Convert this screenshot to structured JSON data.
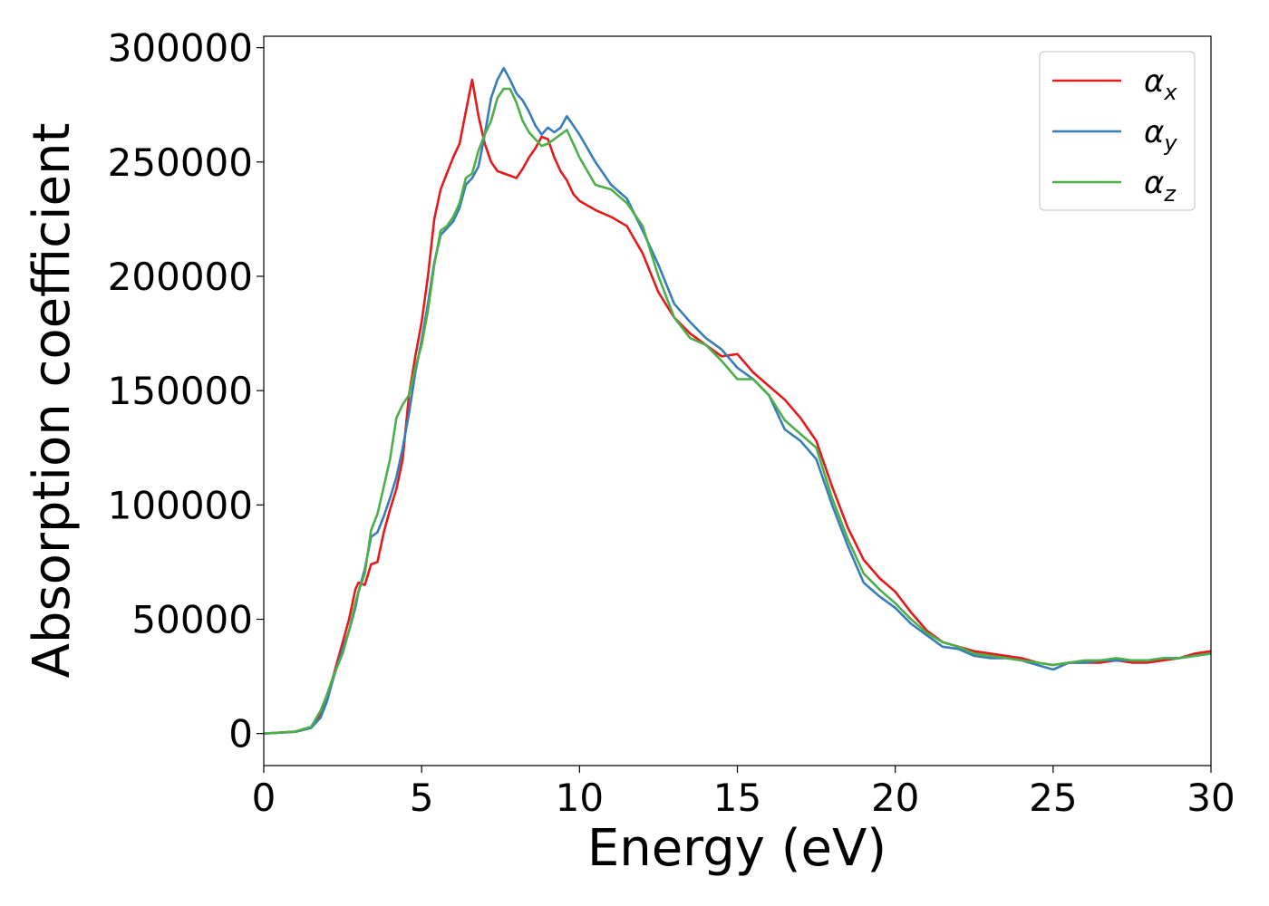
{
  "chart_data": {
    "type": "line",
    "title": "",
    "xlabel": "Energy (eV)",
    "ylabel": "Absorption coefficient",
    "xlim": [
      0,
      30
    ],
    "ylim": [
      -14000,
      305000
    ],
    "xticks": [
      0,
      5,
      10,
      15,
      20,
      25,
      30
    ],
    "yticks": [
      0,
      50000,
      100000,
      150000,
      200000,
      250000,
      300000
    ],
    "grid": false,
    "legend_placement": "top-right",
    "series": [
      {
        "name": "αx",
        "name_base": "α",
        "name_sub": "x",
        "color": "#e41a1c",
        "x": [
          0,
          1,
          1.5,
          1.8,
          2,
          2.2,
          2.5,
          2.7,
          2.9,
          3.0,
          3.2,
          3.4,
          3.6,
          3.8,
          4.0,
          4.2,
          4.4,
          4.6,
          4.8,
          5.0,
          5.2,
          5.4,
          5.6,
          5.8,
          6.0,
          6.2,
          6.4,
          6.6,
          6.8,
          7.0,
          7.2,
          7.4,
          7.6,
          7.8,
          8.0,
          8.2,
          8.4,
          8.6,
          8.8,
          9.0,
          9.2,
          9.4,
          9.6,
          9.8,
          10.0,
          10.5,
          11.0,
          11.5,
          12.0,
          12.5,
          13.0,
          13.5,
          14.0,
          14.5,
          15.0,
          15.5,
          16.0,
          16.5,
          17.0,
          17.5,
          18.0,
          18.5,
          19.0,
          19.5,
          20.0,
          20.5,
          21.0,
          21.5,
          22.0,
          22.5,
          23.0,
          23.5,
          24.0,
          24.5,
          25.0,
          25.5,
          26.0,
          26.5,
          27.0,
          27.5,
          28.0,
          28.5,
          29.0,
          29.5,
          30.0
        ],
        "y": [
          0,
          800,
          2500,
          8000,
          15000,
          25000,
          40000,
          50000,
          63000,
          66000,
          65000,
          74000,
          75000,
          88000,
          98000,
          107000,
          120000,
          148000,
          165000,
          180000,
          200000,
          225000,
          238000,
          245000,
          252000,
          258000,
          272000,
          286000,
          270000,
          258000,
          250000,
          246000,
          245000,
          244000,
          243000,
          247000,
          252000,
          256000,
          261000,
          260000,
          252000,
          246000,
          242000,
          236000,
          233000,
          229000,
          226000,
          222000,
          210000,
          193000,
          182000,
          175000,
          170000,
          165000,
          166000,
          158000,
          152000,
          146000,
          138000,
          128000,
          108000,
          90000,
          76000,
          68000,
          62000,
          53000,
          45000,
          40000,
          38000,
          36000,
          35000,
          34000,
          33000,
          31000,
          30000,
          31000,
          31000,
          31000,
          32000,
          31000,
          31000,
          32000,
          33000,
          35000,
          36000
        ]
      },
      {
        "name": "αy",
        "name_base": "α",
        "name_sub": "y",
        "color": "#377eb8",
        "x": [
          0,
          1,
          1.5,
          1.8,
          2,
          2.2,
          2.5,
          2.7,
          2.9,
          3.0,
          3.2,
          3.4,
          3.6,
          3.8,
          4.0,
          4.2,
          4.4,
          4.6,
          4.8,
          5.0,
          5.2,
          5.4,
          5.6,
          5.8,
          6.0,
          6.2,
          6.4,
          6.6,
          6.8,
          7.0,
          7.2,
          7.4,
          7.6,
          7.8,
          8.0,
          8.2,
          8.4,
          8.6,
          8.8,
          9.0,
          9.2,
          9.4,
          9.6,
          9.8,
          10.0,
          10.5,
          11.0,
          11.5,
          12.0,
          12.5,
          13.0,
          13.5,
          14.0,
          14.5,
          15.0,
          15.5,
          16.0,
          16.5,
          17.0,
          17.5,
          18.0,
          18.5,
          19.0,
          19.5,
          20.0,
          20.5,
          21.0,
          21.5,
          22.0,
          22.5,
          23.0,
          23.5,
          24.0,
          24.5,
          25.0,
          25.5,
          26.0,
          26.5,
          27.0,
          27.5,
          28.0,
          28.5,
          29.0,
          29.5,
          30.0
        ],
        "y": [
          0,
          800,
          2500,
          7000,
          14000,
          24000,
          37000,
          45000,
          55000,
          62000,
          72000,
          86000,
          88000,
          95000,
          103000,
          112000,
          125000,
          140000,
          158000,
          172000,
          188000,
          206000,
          218000,
          221000,
          224000,
          230000,
          240000,
          243000,
          248000,
          262000,
          278000,
          286000,
          291000,
          286000,
          280000,
          277000,
          272000,
          266000,
          262000,
          265000,
          263000,
          265000,
          270000,
          266000,
          262000,
          250000,
          240000,
          234000,
          220000,
          205000,
          188000,
          180000,
          173000,
          168000,
          160000,
          155000,
          148000,
          133000,
          128000,
          120000,
          100000,
          82000,
          66000,
          60000,
          55000,
          48000,
          43000,
          38000,
          37000,
          34000,
          33000,
          33000,
          32000,
          30000,
          28000,
          31000,
          31000,
          32000,
          32000,
          32000,
          32000,
          33000,
          33000,
          34000,
          35000
        ]
      },
      {
        "name": "αz",
        "name_base": "α",
        "name_sub": "z",
        "color": "#4daf4a",
        "x": [
          0,
          1,
          1.5,
          1.8,
          2,
          2.2,
          2.5,
          2.7,
          2.9,
          3.0,
          3.2,
          3.4,
          3.6,
          3.8,
          4.0,
          4.2,
          4.4,
          4.6,
          4.8,
          5.0,
          5.2,
          5.4,
          5.6,
          5.8,
          6.0,
          6.2,
          6.4,
          6.6,
          6.8,
          7.0,
          7.2,
          7.4,
          7.6,
          7.8,
          8.0,
          8.2,
          8.4,
          8.6,
          8.8,
          9.0,
          9.2,
          9.4,
          9.6,
          9.8,
          10.0,
          10.5,
          11.0,
          11.5,
          12.0,
          12.5,
          13.0,
          13.5,
          14.0,
          14.5,
          15.0,
          15.5,
          16.0,
          16.5,
          17.0,
          17.5,
          18.0,
          18.5,
          19.0,
          19.5,
          20.0,
          20.5,
          21.0,
          21.5,
          22.0,
          22.5,
          23.0,
          23.5,
          24.0,
          24.5,
          25.0,
          25.5,
          26.0,
          26.5,
          27.0,
          27.5,
          28.0,
          28.5,
          29.0,
          29.5,
          30.0
        ],
        "y": [
          0,
          900,
          3000,
          10000,
          17000,
          25000,
          35000,
          45000,
          57000,
          62000,
          70000,
          89000,
          96000,
          108000,
          120000,
          138000,
          144000,
          148000,
          160000,
          170000,
          185000,
          205000,
          220000,
          222000,
          226000,
          232000,
          243000,
          245000,
          255000,
          262000,
          268000,
          278000,
          282000,
          282000,
          276000,
          268000,
          263000,
          260000,
          257000,
          258000,
          260000,
          262000,
          264000,
          258000,
          252000,
          240000,
          238000,
          232000,
          222000,
          200000,
          182000,
          173000,
          170000,
          163000,
          155000,
          155000,
          148000,
          137000,
          131000,
          125000,
          103000,
          85000,
          70000,
          63000,
          57000,
          50000,
          44000,
          40000,
          38000,
          35000,
          34000,
          33000,
          32000,
          31000,
          30000,
          31000,
          32000,
          32000,
          33000,
          32000,
          32000,
          33000,
          33000,
          34000,
          35000
        ]
      }
    ]
  }
}
